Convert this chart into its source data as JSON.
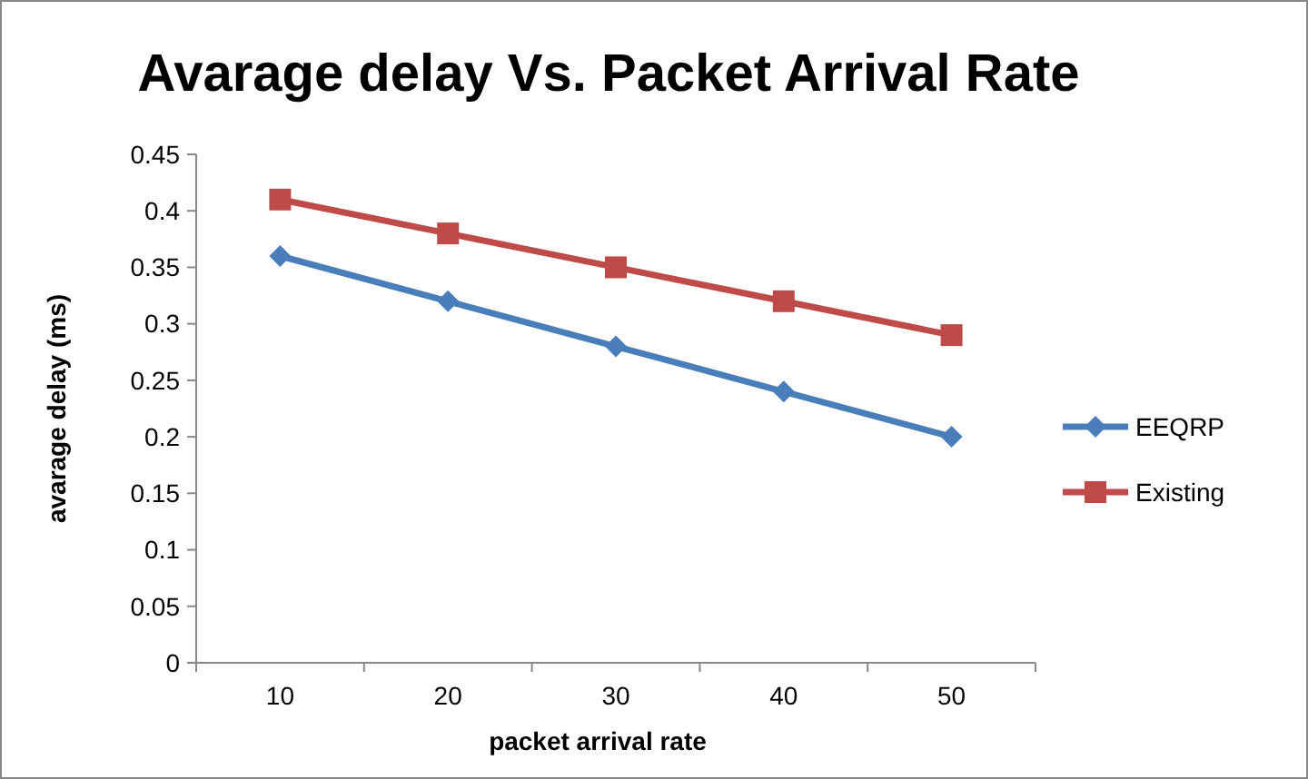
{
  "chart_data": {
    "type": "line",
    "title": "Avarage delay Vs. Packet Arrival Rate",
    "xlabel": "packet arrival rate",
    "ylabel": "avarage delay  (ms)",
    "categories": [
      "10",
      "20",
      "30",
      "40",
      "50"
    ],
    "series": [
      {
        "name": "EEQRP",
        "color": "#4a7ebb",
        "marker": "diamond",
        "values": [
          0.36,
          0.32,
          0.28,
          0.24,
          0.2
        ]
      },
      {
        "name": "Existing",
        "color": "#be4b48",
        "marker": "square",
        "values": [
          0.41,
          0.38,
          0.35,
          0.32,
          0.29
        ]
      }
    ],
    "ylim": [
      0,
      0.45
    ],
    "yticks": [
      {
        "value": 0,
        "label": "0"
      },
      0.05,
      0.1,
      0.15,
      0.2,
      0.25,
      0.3,
      0.35,
      0.4,
      0.45
    ],
    "grid": false,
    "legend": "right",
    "line_style": "solid"
  }
}
